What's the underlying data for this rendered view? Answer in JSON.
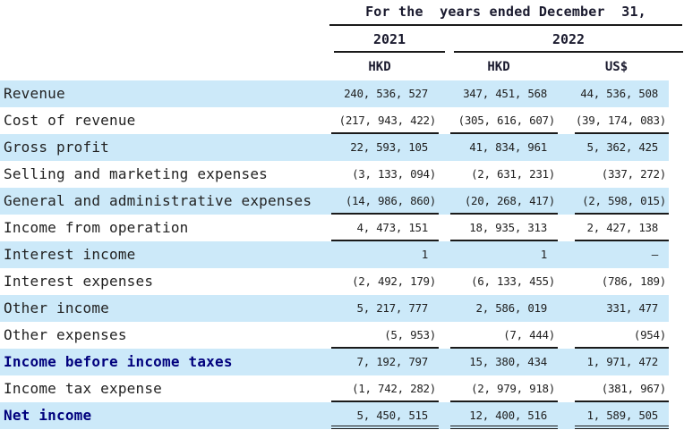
{
  "header": {
    "title": "For the  years ended December  31,",
    "years": [
      "2021",
      "2022"
    ],
    "currency_cols": [
      "HKD",
      "HKD",
      "US$"
    ]
  },
  "table": {
    "columns": [
      "2021 HKD",
      "2022 HKD",
      "2022 US$"
    ],
    "rows": [
      {
        "label": "Revenue",
        "values": [
          "240, 536, 527",
          "347, 451, 568",
          "44, 536, 508"
        ],
        "bold": false,
        "underline": "none"
      },
      {
        "label": "Cost of revenue",
        "values": [
          "(217, 943, 422)",
          "(305, 616, 607)",
          "(39, 174, 083)"
        ],
        "bold": false,
        "underline": "single"
      },
      {
        "label": "Gross profit",
        "values": [
          "22, 593, 105",
          "41, 834, 961",
          "5, 362, 425"
        ],
        "bold": false,
        "underline": "none"
      },
      {
        "label": "Selling and marketing expenses",
        "values": [
          "(3, 133, 094)",
          "(2, 631, 231)",
          "(337, 272)"
        ],
        "bold": false,
        "underline": "none"
      },
      {
        "label": "General and administrative expenses",
        "values": [
          "(14, 986, 860)",
          "(20, 268, 417)",
          "(2, 598, 015)"
        ],
        "bold": false,
        "underline": "single"
      },
      {
        "label": "Income from operation",
        "values": [
          "4, 473, 151",
          "18, 935, 313",
          "2, 427, 138"
        ],
        "bold": false,
        "underline": "single"
      },
      {
        "label": "Interest income",
        "values": [
          "1",
          "1",
          "—"
        ],
        "bold": false,
        "underline": "none"
      },
      {
        "label": "Interest expenses",
        "values": [
          "(2, 492, 179)",
          "(6, 133, 455)",
          "(786, 189)"
        ],
        "bold": false,
        "underline": "none"
      },
      {
        "label": "Other income",
        "values": [
          "5, 217, 777",
          "2, 586, 019",
          "331, 477"
        ],
        "bold": false,
        "underline": "none"
      },
      {
        "label": "Other expenses",
        "values": [
          "(5, 953)",
          "(7, 444)",
          "(954)"
        ],
        "bold": false,
        "underline": "single"
      },
      {
        "label": "Income before income taxes",
        "values": [
          "7, 192, 797",
          "15, 380, 434",
          "1, 971, 472"
        ],
        "bold": true,
        "underline": "none"
      },
      {
        "label": "Income tax expense",
        "values": [
          "(1, 742, 282)",
          "(2, 979, 918)",
          "(381, 967)"
        ],
        "bold": false,
        "underline": "single"
      },
      {
        "label": "Net income",
        "values": [
          "5, 450, 515",
          "12, 400, 516",
          "1, 589, 505"
        ],
        "bold": true,
        "underline": "double"
      }
    ]
  },
  "colors": {
    "stripe": "#cce9f9",
    "rule": "#1a1a1a",
    "text": "#222222",
    "bold_accent": "#00007d"
  }
}
